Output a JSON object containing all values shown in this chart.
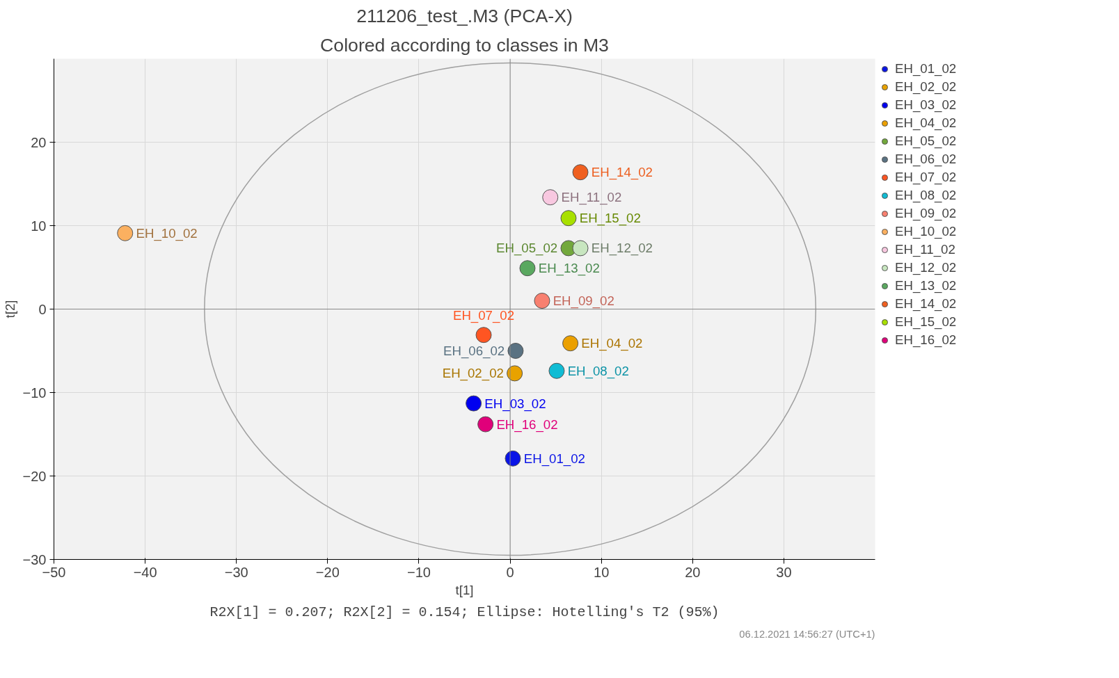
{
  "chart_data": {
    "type": "scatter",
    "title": "211206_test_.M3 (PCA-X)",
    "subtitle": "Colored according to classes in M3",
    "xlabel": "t[1]",
    "ylabel": "t[2]",
    "xlim": [
      -50,
      40
    ],
    "ylim": [
      -30,
      30
    ],
    "xticks": [
      -50,
      -40,
      -30,
      -20,
      -10,
      0,
      10,
      20,
      30
    ],
    "yticks": [
      -30,
      -20,
      -10,
      0,
      10,
      20
    ],
    "grid": true,
    "legend": "right",
    "marker": "circle",
    "annotations": [
      "R2X[1] = 0.207; R2X[2] = 0.154; Ellipse: Hotelling's T2 (95%)",
      "06.12.2021 14:56:27 (UTC+1)"
    ],
    "series": [
      {
        "name": "EH_01_02",
        "color": "#0a14e6",
        "x": [
          0.3
        ],
        "values": [
          -17.9
        ]
      },
      {
        "name": "EH_02_02",
        "color": "#e8a200",
        "x": [
          0.5
        ],
        "values": [
          -7.7
        ]
      },
      {
        "name": "EH_03_02",
        "color": "#0000f0",
        "x": [
          -4.0
        ],
        "values": [
          -11.3
        ]
      },
      {
        "name": "EH_04_02",
        "color": "#eba000",
        "x": [
          6.6
        ],
        "values": [
          -4.1
        ]
      },
      {
        "name": "EH_05_02",
        "color": "#72a83c",
        "x": [
          6.4
        ],
        "values": [
          7.3
        ]
      },
      {
        "name": "EH_06_02",
        "color": "#5a7282",
        "x": [
          0.6
        ],
        "values": [
          -5.0
        ]
      },
      {
        "name": "EH_07_02",
        "color": "#ff5522",
        "x": [
          -2.9
        ],
        "values": [
          -3.1
        ]
      },
      {
        "name": "EH_08_02",
        "color": "#10bcd4",
        "x": [
          5.1
        ],
        "values": [
          -7.4
        ]
      },
      {
        "name": "EH_09_02",
        "color": "#f88070",
        "x": [
          3.5
        ],
        "values": [
          1.0
        ]
      },
      {
        "name": "EH_10_02",
        "color": "#fbb060",
        "x": [
          -42.2
        ],
        "values": [
          9.1
        ]
      },
      {
        "name": "EH_11_02",
        "color": "#f8c8e0",
        "x": [
          4.4
        ],
        "values": [
          13.4
        ]
      },
      {
        "name": "EH_12_02",
        "color": "#c8e6c0",
        "x": [
          7.7
        ],
        "values": [
          7.3
        ]
      },
      {
        "name": "EH_13_02",
        "color": "#5aa860",
        "x": [
          1.9
        ],
        "values": [
          4.9
        ]
      },
      {
        "name": "EH_14_02",
        "color": "#f06020",
        "x": [
          7.7
        ],
        "values": [
          16.4
        ]
      },
      {
        "name": "EH_15_02",
        "color": "#a8e000",
        "x": [
          6.4
        ],
        "values": [
          10.9
        ]
      },
      {
        "name": "EH_16_02",
        "color": "#e0007a",
        "x": [
          -2.7
        ],
        "values": [
          -13.8
        ]
      }
    ]
  }
}
